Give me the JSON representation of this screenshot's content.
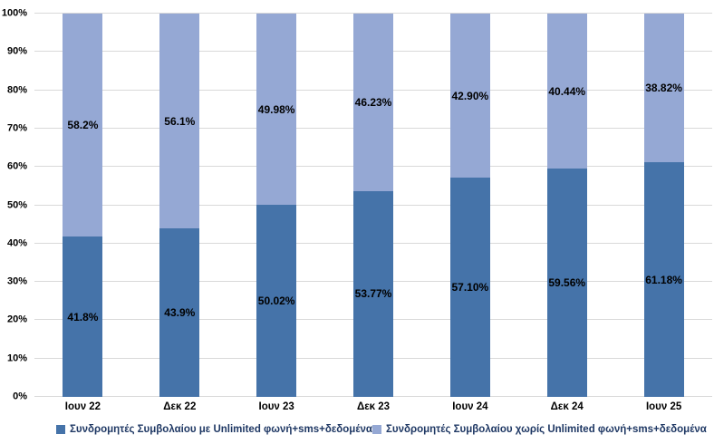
{
  "chart_data": {
    "type": "bar",
    "variant": "stacked-100",
    "title": "",
    "xlabel": "",
    "ylabel": "",
    "ylim": [
      0,
      100
    ],
    "grid": true,
    "gridline_color": "#d9d9d9",
    "legend_position": "bottom",
    "y_ticks": [
      "0%",
      "10%",
      "20%",
      "30%",
      "40%",
      "50%",
      "60%",
      "70%",
      "80%",
      "90%",
      "100%"
    ],
    "categories": [
      "Ιουν 22",
      "Δεκ 22",
      "Ιουν 23",
      "Δεκ 23",
      "Ιουν 24",
      "Δεκ 24",
      "Ιουν 25"
    ],
    "series": [
      {
        "name": "Συνδρομητές Συμβολαίου με Unlimited φωνή+sms+δεδομένα",
        "color": "#4573A9",
        "values": [
          41.8,
          43.9,
          50.02,
          53.77,
          57.1,
          59.56,
          61.18
        ],
        "labels": [
          "41.8%",
          "43.9%",
          "50.02%",
          "53.77%",
          "57.10%",
          "59.56%",
          "61.18%"
        ]
      },
      {
        "name": "Συνδρομητές Συμβολαίου χωρίς Unlimited φωνή+sms+δεδομένα",
        "color": "#95A8D4",
        "values": [
          58.2,
          56.1,
          49.98,
          46.23,
          42.9,
          40.44,
          38.82
        ],
        "labels": [
          "58.2%",
          "56.1%",
          "49.98%",
          "46.23%",
          "42.90%",
          "40.44%",
          "38.82%"
        ]
      }
    ],
    "colors": {
      "data_label_text": "#000000",
      "axis_label_text": "#000000",
      "legend_text": "#1f3864",
      "background": "#ffffff"
    }
  }
}
